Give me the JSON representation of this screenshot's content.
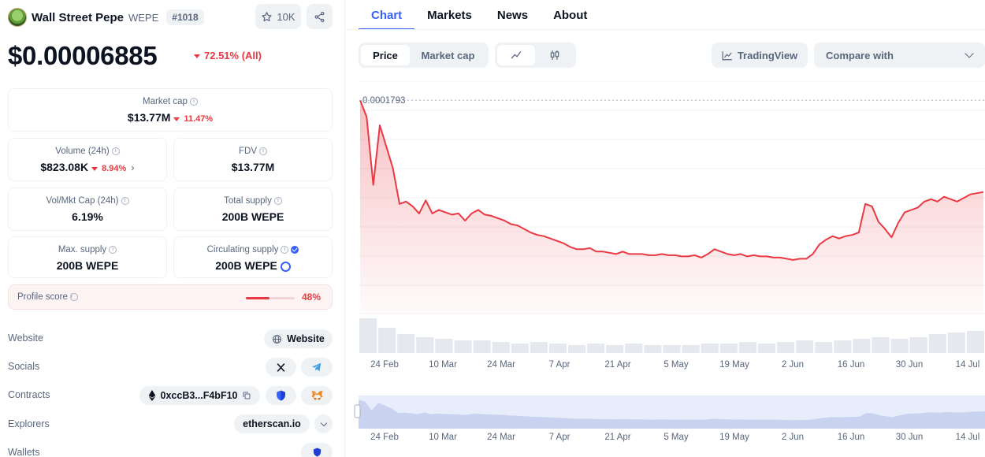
{
  "coin": {
    "name": "Wall Street Pepe",
    "symbol": "WEPE",
    "rank": "#1018",
    "watchlist_count": "10K",
    "price": "$0.00006885",
    "price_change": "72.51% (All)"
  },
  "stats": {
    "market_cap": {
      "label": "Market cap",
      "value": "$13.77M",
      "change": "11.47%"
    },
    "volume": {
      "label": "Volume (24h)",
      "value": "$823.08K",
      "change": "8.94%"
    },
    "fdv": {
      "label": "FDV",
      "value": "$13.77M"
    },
    "vol_mkt_cap": {
      "label": "Vol/Mkt Cap (24h)",
      "value": "6.19%"
    },
    "total_supply": {
      "label": "Total supply",
      "value": "200B WEPE"
    },
    "max_supply": {
      "label": "Max. supply",
      "value": "200B WEPE"
    },
    "circulating_supply": {
      "label": "Circulating supply",
      "value": "200B WEPE"
    }
  },
  "profile_score": {
    "label": "Profile score",
    "value": "48%",
    "fraction": 0.48
  },
  "links": {
    "website_label": "Website",
    "website_button": "Website",
    "socials_label": "Socials",
    "contracts_label": "Contracts",
    "contract_address": "0xccB3...F4bF10",
    "explorers_label": "Explorers",
    "explorer_value": "etherscan.io",
    "wallets_label": "Wallets"
  },
  "tabs": [
    "Chart",
    "Markets",
    "News",
    "About"
  ],
  "controls": {
    "price": "Price",
    "market_cap": "Market cap",
    "tradingview": "TradingView",
    "compare": "Compare with"
  },
  "colors": {
    "accent": "#3861fb",
    "down": "#ea3943",
    "muted": "#58667e"
  },
  "chart_data": {
    "type": "area",
    "series": [
      {
        "values": [
          0.000179,
          0.000165,
          0.000108,
          0.000158,
          0.00014,
          0.000122,
          9.2e-05,
          9.4e-05,
          9e-05,
          8.4e-05,
          9.5e-05,
          8.4e-05,
          8.7e-05,
          8.5e-05,
          8.3e-05,
          8.4e-05,
          7.8e-05,
          8.4e-05,
          8.7e-05,
          8.3e-05,
          8.2e-05,
          8e-05,
          7.8e-05,
          7.5e-05,
          7.4e-05,
          7.1e-05,
          6.8e-05,
          6.6e-05,
          6.5e-05,
          6.3e-05,
          6.1e-05,
          5.9e-05,
          5.6e-05,
          5.4e-05,
          5.4e-05,
          5.5e-05,
          5.2e-05,
          5.2e-05,
          5.1e-05,
          5e-05,
          5.2e-05,
          5e-05,
          5e-05,
          5e-05,
          4.9e-05,
          4.9e-05,
          5e-05,
          4.9e-05,
          4.9e-05,
          4.8e-05,
          4.8e-05,
          4.9e-05,
          4.7e-05,
          5e-05,
          5.4e-05,
          5.2e-05,
          5e-05,
          4.9e-05,
          5e-05,
          4.8e-05,
          4.9e-05,
          4.8e-05,
          4.8e-05,
          4.7e-05,
          4.7e-05,
          4.6e-05,
          4.5e-05,
          4.6e-05,
          4.6e-05,
          5e-05,
          5.8e-05,
          6.2e-05,
          6.5e-05,
          6.3e-05,
          6.5e-05,
          6.6e-05,
          6.8e-05,
          9.2e-05,
          9e-05,
          7.7e-05,
          7.1e-05,
          6.4e-05,
          7.6e-05,
          8.5e-05,
          8.7e-05,
          8.9e-05,
          9.4e-05,
          9.6e-05,
          9.4e-05,
          9.8e-05,
          9.6e-05,
          9.4e-05,
          9.7e-05,
          0.0001,
          0.000101,
          0.000102
        ]
      }
    ],
    "x_ticks": [
      "24 Feb",
      "10 Mar",
      "24 Mar",
      "7 Apr",
      "21 Apr",
      "5 May",
      "19 May",
      "2 Jun",
      "16 Jun",
      "30 Jun",
      "14 Jul"
    ],
    "high_label": "0.0001793",
    "ylim": [
      0,
      0.000195
    ],
    "grid": true,
    "volume": [
      0.22,
      0.16,
      0.12,
      0.1,
      0.09,
      0.08,
      0.08,
      0.07,
      0.06,
      0.07,
      0.06,
      0.05,
      0.06,
      0.05,
      0.06,
      0.05,
      0.05,
      0.05,
      0.06,
      0.06,
      0.07,
      0.06,
      0.07,
      0.08,
      0.07,
      0.08,
      0.09,
      0.1,
      0.09,
      0.1,
      0.12,
      0.13,
      0.14
    ]
  }
}
